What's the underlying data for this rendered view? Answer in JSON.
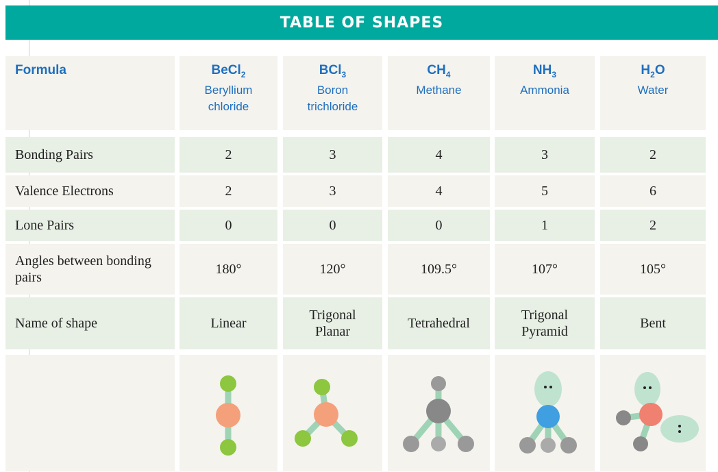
{
  "title": "TABLE OF SHAPES",
  "table": {
    "header_label": "Formula",
    "columns": [
      {
        "formula": [
          "BeCl",
          "2"
        ],
        "name": "Beryllium chloride"
      },
      {
        "formula": [
          "BCl",
          "3"
        ],
        "name": "Boron trichloride"
      },
      {
        "formula": [
          "CH",
          "4"
        ],
        "name": "Methane"
      },
      {
        "formula": [
          "NH",
          "3"
        ],
        "name": "Ammonia"
      },
      {
        "formula": [
          "H",
          "2",
          "O"
        ],
        "name": "Water"
      }
    ],
    "rows": [
      {
        "label": "Bonding Pairs",
        "values": [
          2,
          3,
          4,
          3,
          2
        ]
      },
      {
        "label": "Valence Electrons",
        "values": [
          2,
          3,
          4,
          5,
          6
        ]
      },
      {
        "label": "Lone Pairs",
        "values": [
          0,
          0,
          0,
          1,
          2
        ]
      },
      {
        "label": "Angles between bonding pairs",
        "values": [
          "180°",
          "120°",
          "109.5°",
          "107°",
          "105°"
        ]
      },
      {
        "label": "Name of shape",
        "values": [
          "Linear",
          "Trigonal Planar",
          "Tetrahedral",
          "Trigonal Pyramid",
          "Bent"
        ]
      }
    ]
  }
}
